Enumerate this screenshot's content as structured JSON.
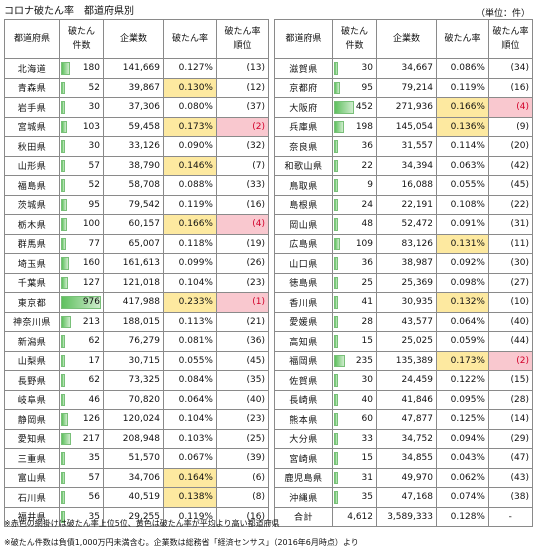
{
  "title": "コロナ破たん率　都道府県別",
  "unit": "（単位：件）",
  "headers": {
    "pref": "都道府県",
    "count": "破たん\n件数",
    "firms": "企業数",
    "rate": "破たん率",
    "rank": "破たん率\n順位"
  },
  "left_rows": [
    {
      "pref": "北海道",
      "count": 180,
      "firms": "141,669",
      "rate": "0.127%",
      "rank": "(13)",
      "hi": false,
      "top": false
    },
    {
      "pref": "青森県",
      "count": 52,
      "firms": "39,867",
      "rate": "0.130%",
      "rank": "(12)",
      "hi": true,
      "top": false
    },
    {
      "pref": "岩手県",
      "count": 30,
      "firms": "37,306",
      "rate": "0.080%",
      "rank": "(37)",
      "hi": false,
      "top": false
    },
    {
      "pref": "宮城県",
      "count": 103,
      "firms": "59,458",
      "rate": "0.173%",
      "rank": "(2)",
      "hi": true,
      "top": true
    },
    {
      "pref": "秋田県",
      "count": 30,
      "firms": "33,126",
      "rate": "0.090%",
      "rank": "(32)",
      "hi": false,
      "top": false
    },
    {
      "pref": "山形県",
      "count": 57,
      "firms": "38,790",
      "rate": "0.146%",
      "rank": "(7)",
      "hi": true,
      "top": false
    },
    {
      "pref": "福島県",
      "count": 52,
      "firms": "58,708",
      "rate": "0.088%",
      "rank": "(33)",
      "hi": false,
      "top": false
    },
    {
      "pref": "茨城県",
      "count": 95,
      "firms": "79,542",
      "rate": "0.119%",
      "rank": "(16)",
      "hi": false,
      "top": false
    },
    {
      "pref": "栃木県",
      "count": 100,
      "firms": "60,157",
      "rate": "0.166%",
      "rank": "(4)",
      "hi": true,
      "top": true
    },
    {
      "pref": "群馬県",
      "count": 77,
      "firms": "65,007",
      "rate": "0.118%",
      "rank": "(19)",
      "hi": false,
      "top": false
    },
    {
      "pref": "埼玉県",
      "count": 160,
      "firms": "161,613",
      "rate": "0.099%",
      "rank": "(26)",
      "hi": false,
      "top": false
    },
    {
      "pref": "千葉県",
      "count": 127,
      "firms": "121,018",
      "rate": "0.104%",
      "rank": "(23)",
      "hi": false,
      "top": false
    },
    {
      "pref": "東京都",
      "count": 976,
      "firms": "417,988",
      "rate": "0.233%",
      "rank": "(1)",
      "hi": true,
      "top": true
    },
    {
      "pref": "神奈川県",
      "count": 213,
      "firms": "188,015",
      "rate": "0.113%",
      "rank": "(21)",
      "hi": false,
      "top": false
    },
    {
      "pref": "新潟県",
      "count": 62,
      "firms": "76,279",
      "rate": "0.081%",
      "rank": "(36)",
      "hi": false,
      "top": false
    },
    {
      "pref": "山梨県",
      "count": 17,
      "firms": "30,715",
      "rate": "0.055%",
      "rank": "(45)",
      "hi": false,
      "top": false
    },
    {
      "pref": "長野県",
      "count": 62,
      "firms": "73,325",
      "rate": "0.084%",
      "rank": "(35)",
      "hi": false,
      "top": false
    },
    {
      "pref": "岐阜県",
      "count": 46,
      "firms": "70,820",
      "rate": "0.064%",
      "rank": "(40)",
      "hi": false,
      "top": false
    },
    {
      "pref": "静岡県",
      "count": 126,
      "firms": "120,024",
      "rate": "0.104%",
      "rank": "(23)",
      "hi": false,
      "top": false
    },
    {
      "pref": "愛知県",
      "count": 217,
      "firms": "208,948",
      "rate": "0.103%",
      "rank": "(25)",
      "hi": false,
      "top": false
    },
    {
      "pref": "三重県",
      "count": 35,
      "firms": "51,570",
      "rate": "0.067%",
      "rank": "(39)",
      "hi": false,
      "top": false
    },
    {
      "pref": "富山県",
      "count": 57,
      "firms": "34,706",
      "rate": "0.164%",
      "rank": "(6)",
      "hi": true,
      "top": false
    },
    {
      "pref": "石川県",
      "count": 56,
      "firms": "40,519",
      "rate": "0.138%",
      "rank": "(8)",
      "hi": true,
      "top": false
    },
    {
      "pref": "福井県",
      "count": 35,
      "firms": "29,255",
      "rate": "0.119%",
      "rank": "(16)",
      "hi": false,
      "top": false
    }
  ],
  "right_rows": [
    {
      "pref": "滋賀県",
      "count": 30,
      "firms": "34,667",
      "rate": "0.086%",
      "rank": "(34)",
      "hi": false,
      "top": false
    },
    {
      "pref": "京都府",
      "count": 95,
      "firms": "79,214",
      "rate": "0.119%",
      "rank": "(16)",
      "hi": false,
      "top": false
    },
    {
      "pref": "大阪府",
      "count": 452,
      "firms": "271,936",
      "rate": "0.166%",
      "rank": "(4)",
      "hi": true,
      "top": true
    },
    {
      "pref": "兵庫県",
      "count": 198,
      "firms": "145,054",
      "rate": "0.136%",
      "rank": "(9)",
      "hi": true,
      "top": false
    },
    {
      "pref": "奈良県",
      "count": 36,
      "firms": "31,557",
      "rate": "0.114%",
      "rank": "(20)",
      "hi": false,
      "top": false
    },
    {
      "pref": "和歌山県",
      "count": 22,
      "firms": "34,394",
      "rate": "0.063%",
      "rank": "(42)",
      "hi": false,
      "top": false
    },
    {
      "pref": "鳥取県",
      "count": 9,
      "firms": "16,088",
      "rate": "0.055%",
      "rank": "(45)",
      "hi": false,
      "top": false
    },
    {
      "pref": "島根県",
      "count": 24,
      "firms": "22,191",
      "rate": "0.108%",
      "rank": "(22)",
      "hi": false,
      "top": false
    },
    {
      "pref": "岡山県",
      "count": 48,
      "firms": "52,472",
      "rate": "0.091%",
      "rank": "(31)",
      "hi": false,
      "top": false
    },
    {
      "pref": "広島県",
      "count": 109,
      "firms": "83,126",
      "rate": "0.131%",
      "rank": "(11)",
      "hi": true,
      "top": false
    },
    {
      "pref": "山口県",
      "count": 36,
      "firms": "38,987",
      "rate": "0.092%",
      "rank": "(30)",
      "hi": false,
      "top": false
    },
    {
      "pref": "徳島県",
      "count": 25,
      "firms": "25,369",
      "rate": "0.098%",
      "rank": "(27)",
      "hi": false,
      "top": false
    },
    {
      "pref": "香川県",
      "count": 41,
      "firms": "30,935",
      "rate": "0.132%",
      "rank": "(10)",
      "hi": true,
      "top": false
    },
    {
      "pref": "愛媛県",
      "count": 28,
      "firms": "43,577",
      "rate": "0.064%",
      "rank": "(40)",
      "hi": false,
      "top": false
    },
    {
      "pref": "高知県",
      "count": 15,
      "firms": "25,025",
      "rate": "0.059%",
      "rank": "(44)",
      "hi": false,
      "top": false
    },
    {
      "pref": "福岡県",
      "count": 235,
      "firms": "135,389",
      "rate": "0.173%",
      "rank": "(2)",
      "hi": true,
      "top": true
    },
    {
      "pref": "佐賀県",
      "count": 30,
      "firms": "24,459",
      "rate": "0.122%",
      "rank": "(15)",
      "hi": false,
      "top": false
    },
    {
      "pref": "長崎県",
      "count": 40,
      "firms": "41,846",
      "rate": "0.095%",
      "rank": "(28)",
      "hi": false,
      "top": false
    },
    {
      "pref": "熊本県",
      "count": 60,
      "firms": "47,877",
      "rate": "0.125%",
      "rank": "(14)",
      "hi": false,
      "top": false
    },
    {
      "pref": "大分県",
      "count": 33,
      "firms": "34,752",
      "rate": "0.094%",
      "rank": "(29)",
      "hi": false,
      "top": false
    },
    {
      "pref": "宮崎県",
      "count": 15,
      "firms": "34,855",
      "rate": "0.043%",
      "rank": "(47)",
      "hi": false,
      "top": false
    },
    {
      "pref": "鹿児島県",
      "count": 31,
      "firms": "49,970",
      "rate": "0.062%",
      "rank": "(43)",
      "hi": false,
      "top": false
    },
    {
      "pref": "沖縄県",
      "count": 35,
      "firms": "47,168",
      "rate": "0.074%",
      "rank": "(38)",
      "hi": false,
      "top": false
    }
  ],
  "total": {
    "label": "合計",
    "count": "4,612",
    "firms": "3,589,333",
    "rate": "0.128%",
    "rank": "-"
  },
  "bar_max": 976,
  "colors": {
    "highlight_rate": "#fde9a0",
    "highlight_rank": "#f9c8cf",
    "bar": "#5fc05f"
  },
  "notes": [
    "※赤色の網掛けは破たん率上位5位、黄色は破たん率が平均より高い都道府県",
    "※破たん件数は負債1,000万円未満含む。企業数は総務省「経済センサス」（2016年6月時点）より"
  ]
}
